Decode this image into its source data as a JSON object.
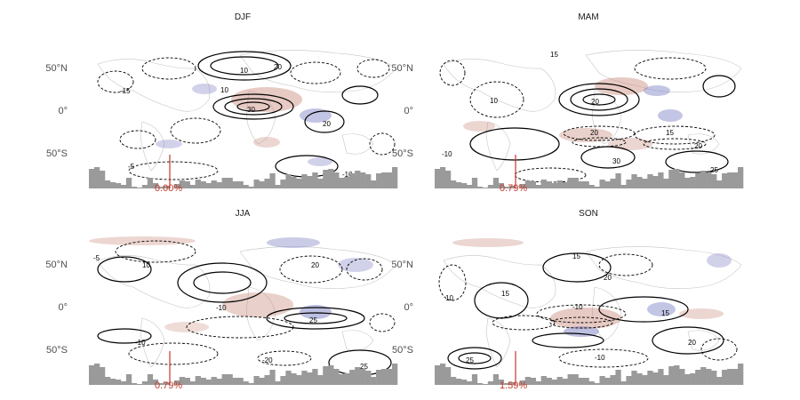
{
  "panels": [
    {
      "title": "DJF",
      "percent": "0.00%"
    },
    {
      "title": "MAM",
      "percent": "0.79%"
    },
    {
      "title": "JJA",
      "percent": "0.79%"
    },
    {
      "title": "SON",
      "percent": "1.59%"
    }
  ],
  "lat_ticks": [
    "50°N",
    "0°",
    "50°S"
  ],
  "colors": {
    "contour": "#000000",
    "positive_shading": "#c98a7a",
    "negative_shading": "#7b7fc4",
    "histogram": "#9a9a9a",
    "marker": "#c0392b",
    "coastline": "#b5b5b5"
  }
}
